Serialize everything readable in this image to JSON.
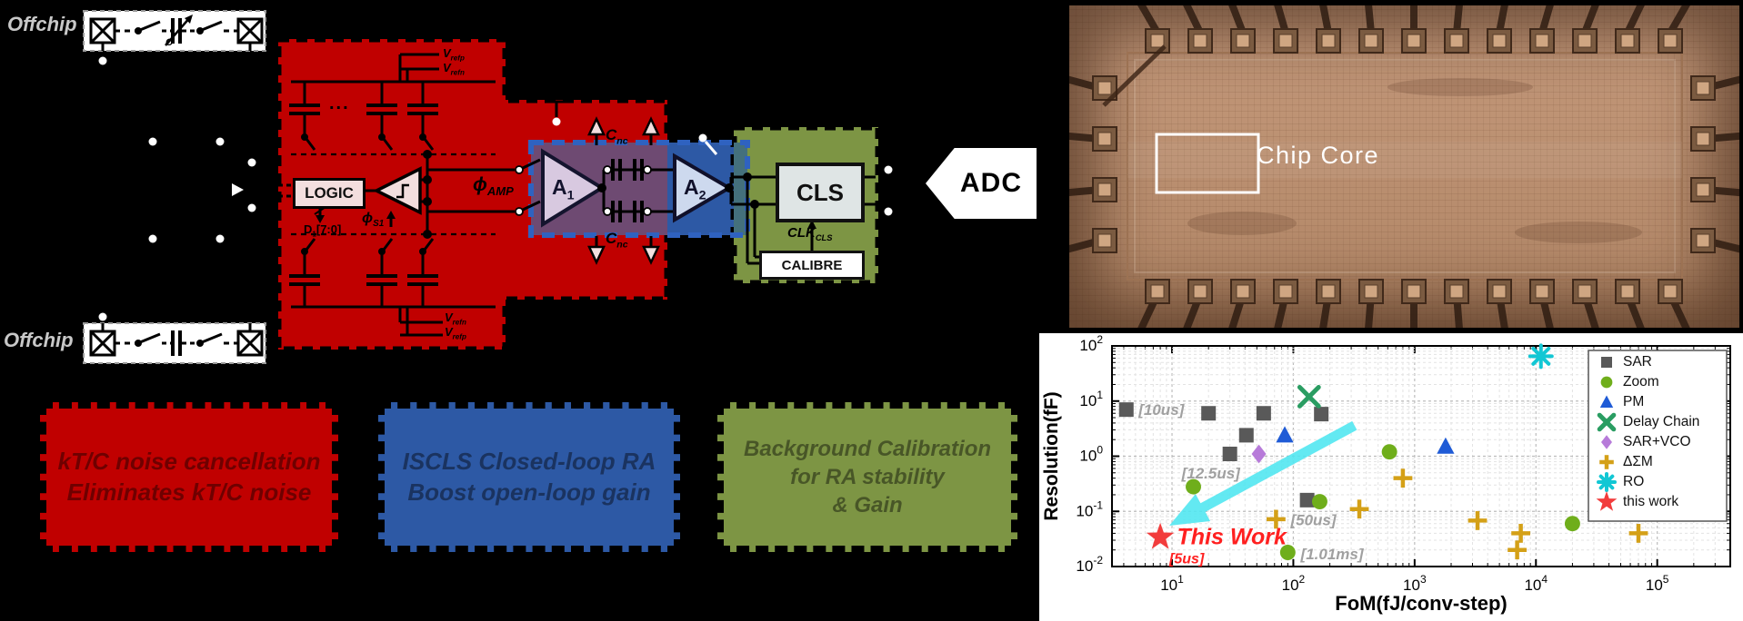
{
  "panels": {
    "circuit": {
      "offchip_top": "Offchip",
      "offchip_bottom": "Offchip",
      "cap_label": "C",
      "ellipsis": "...",
      "logic": "LOGIC",
      "d1": {
        "base": "D",
        "sub": "1",
        "rest": "[7:0]"
      },
      "phi_s1": {
        "base": "ϕ",
        "sub": "S1"
      },
      "phi_amp": {
        "base": "ϕ",
        "sub": "AMP"
      },
      "vrefp": {
        "base": "V",
        "sub": "refp"
      },
      "vrefn": {
        "base": "V",
        "sub": "refn"
      },
      "a1": {
        "base": "A",
        "sub": "1"
      },
      "a2": {
        "base": "A",
        "sub": "2"
      },
      "cnc": {
        "base": "C",
        "sub": "nc"
      },
      "cls": "CLS",
      "clk_cls": {
        "base": "CLK",
        "sub": "CLS"
      },
      "calibre": "CALIBRE",
      "adc": "ADC",
      "highlight_boxes": [
        {
          "name": "kt-c-noise-cancellation",
          "color": "#c00000",
          "lines": [
            "kT/C noise cancellation",
            "Eliminates kT/C noise"
          ]
        },
        {
          "name": "iscls-closed-loop-ra",
          "color": "#2d59a5",
          "lines": [
            "ISCLS Closed-loop RA",
            "Boost open-loop gain"
          ]
        },
        {
          "name": "background-calibration",
          "color": "#7d9544",
          "lines": [
            "Background Calibration",
            "for RA stability",
            "& Gain"
          ]
        }
      ]
    },
    "chip_photo": {
      "core_label": "Chip Core"
    }
  },
  "chart_data": {
    "type": "scatter",
    "xlabel": "FoM(fJ/conv-step)",
    "ylabel": "Resolution(fF)",
    "xscale": "log",
    "yscale": "log",
    "xlim": [
      3.2,
      400000
    ],
    "ylim": [
      0.01,
      100
    ],
    "xticks": [
      1,
      2,
      3,
      4,
      5
    ],
    "yticks": [
      2,
      1,
      0,
      -1,
      -2
    ],
    "grid": "dashed",
    "legend_position": "top-right",
    "series": [
      {
        "name": "SAR",
        "marker": "square",
        "color": "#595959",
        "points": [
          [
            4.2,
            7
          ],
          [
            20,
            6
          ],
          [
            57,
            6
          ],
          [
            170,
            5.8
          ],
          [
            41,
            2.4
          ],
          [
            30,
            1.1
          ],
          [
            130,
            0.16
          ]
        ]
      },
      {
        "name": "Zoom",
        "marker": "circle",
        "color": "#6fae1b",
        "points": [
          [
            15,
            0.28
          ],
          [
            165,
            0.15
          ],
          [
            620,
            1.2
          ],
          [
            90,
            0.018
          ],
          [
            20000,
            0.06
          ]
        ]
      },
      {
        "name": "PM",
        "marker": "triangle",
        "color": "#1f5bd6",
        "points": [
          [
            85,
            2.4
          ],
          [
            1800,
            1.5
          ]
        ]
      },
      {
        "name": "Delay Chain",
        "marker": "x",
        "color": "#2a9d62",
        "points": [
          [
            135,
            12
          ]
        ]
      },
      {
        "name": "SAR+VCO",
        "marker": "diamond",
        "color": "#b77bd9",
        "points": [
          [
            52,
            1.1
          ]
        ]
      },
      {
        "name": "ΔΣM",
        "marker": "plus",
        "color": "#d4a017",
        "points": [
          [
            72,
            0.072
          ],
          [
            350,
            0.11
          ],
          [
            800,
            0.4
          ],
          [
            3300,
            0.068
          ],
          [
            7500,
            0.04
          ],
          [
            7000,
            0.02
          ],
          [
            70000,
            0.04
          ]
        ]
      },
      {
        "name": "RO",
        "marker": "asterisk",
        "color": "#12c7d4",
        "points": [
          [
            11000,
            65
          ]
        ]
      },
      {
        "name": "this work",
        "marker": "star",
        "color": "#f23c3c",
        "points": [
          [
            8,
            0.034
          ]
        ]
      }
    ],
    "annotations": [
      {
        "text": "[10us]",
        "x": 5.3,
        "y": 7,
        "color": "#a0a0a0",
        "size": 17
      },
      {
        "text": "[12.5us]",
        "x": 12,
        "y": 0.5,
        "color": "#a0a0a0",
        "size": 17
      },
      {
        "text": "[50us]",
        "x": 95,
        "y": 0.07,
        "color": "#a0a0a0",
        "size": 17
      },
      {
        "text": "[1.01ms]",
        "x": 115,
        "y": 0.017,
        "color": "#a0a0a0",
        "size": 17
      },
      {
        "text": "This Work",
        "x": 11,
        "y": 0.034,
        "color": "#ff2020",
        "size": 25,
        "bold": true
      },
      {
        "text": "[5us]",
        "x": 9.5,
        "y": 0.0155,
        "color": "#ff2020",
        "size": 16,
        "bold": true
      }
    ],
    "arrow": {
      "from": [
        320,
        3.6
      ],
      "to": [
        9.5,
        0.055
      ],
      "color": "#4de6f0"
    }
  }
}
